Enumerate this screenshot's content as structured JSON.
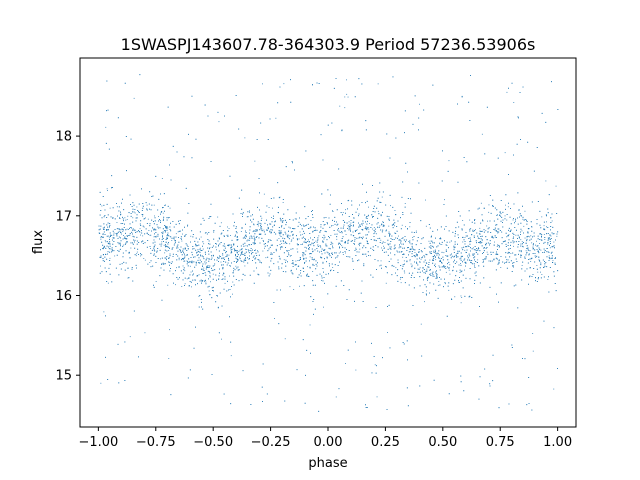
{
  "chart_data": {
    "type": "scatter",
    "title": "1SWASPJ143607.78-364303.9 Period 57236.53906s",
    "xlabel": "phase",
    "ylabel": "flux",
    "xlim": [
      -1.08,
      1.08
    ],
    "ylim": [
      14.35,
      18.98
    ],
    "xticks": [
      -1.0,
      -0.75,
      -0.5,
      -0.25,
      0.0,
      0.25,
      0.5,
      0.75,
      1.0
    ],
    "xtick_labels": [
      "−1.00",
      "−0.75",
      "−0.50",
      "−0.25",
      "0.00",
      "0.25",
      "0.50",
      "0.75",
      "1.00"
    ],
    "yticks": [
      15,
      16,
      17,
      18
    ],
    "ytick_labels": [
      "15",
      "16",
      "17",
      "18"
    ],
    "grid": false,
    "marker_color": "#1f77b4",
    "series": [
      {
        "x_range": [
          -1.0,
          1.0
        ],
        "trend": {
          "x": [
            -1.0,
            -0.9,
            -0.8,
            -0.7,
            -0.6,
            -0.5,
            -0.4,
            -0.3,
            -0.2,
            -0.1,
            0.0,
            0.1,
            0.2,
            0.3,
            0.4,
            0.5,
            0.6,
            0.7,
            0.8,
            0.9,
            1.0
          ],
          "y": [
            16.68,
            16.78,
            16.82,
            16.7,
            16.45,
            16.42,
            16.55,
            16.75,
            16.72,
            16.6,
            16.62,
            16.78,
            16.82,
            16.7,
            16.45,
            16.42,
            16.55,
            16.75,
            16.72,
            16.6,
            16.62
          ]
        },
        "core_scatter": 0.22,
        "outlier_range": [
          14.55,
          18.78
        ]
      }
    ]
  }
}
